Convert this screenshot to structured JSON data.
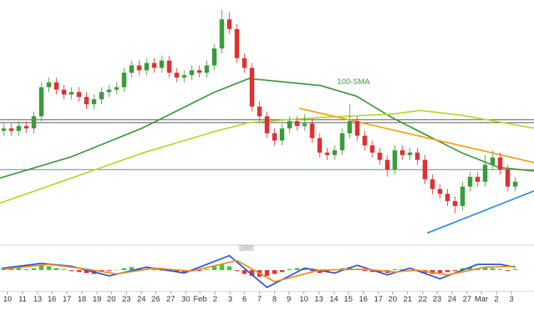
{
  "chart_data": {
    "type": "candlestick",
    "xlim": [
      -0.5,
      70.5
    ],
    "ylim": [
      0,
      100
    ],
    "xticks": [
      {
        "value": 0.5,
        "label": "10"
      },
      {
        "value": 2.5,
        "label": "11"
      },
      {
        "value": 4.5,
        "label": "13"
      },
      {
        "value": 6.4,
        "label": "16"
      },
      {
        "value": 8.4,
        "label": "17"
      },
      {
        "value": 10.4,
        "label": "18"
      },
      {
        "value": 12.4,
        "label": "19"
      },
      {
        "value": 14.3,
        "label": "20"
      },
      {
        "value": 16.3,
        "label": "23"
      },
      {
        "value": 18.3,
        "label": "24"
      },
      {
        "value": 20.2,
        "label": "26"
      },
      {
        "value": 22.2,
        "label": "27"
      },
      {
        "value": 24.2,
        "label": "30"
      },
      {
        "value": 26.1,
        "label": "Feb"
      },
      {
        "value": 28.1,
        "label": "2"
      },
      {
        "value": 30.1,
        "label": "3"
      },
      {
        "value": 32.0,
        "label": "6"
      },
      {
        "value": 34.0,
        "label": "7"
      },
      {
        "value": 36.0,
        "label": "8"
      },
      {
        "value": 37.9,
        "label": "9"
      },
      {
        "value": 39.9,
        "label": "10"
      },
      {
        "value": 41.9,
        "label": "13"
      },
      {
        "value": 43.9,
        "label": "14"
      },
      {
        "value": 45.8,
        "label": "15"
      },
      {
        "value": 47.8,
        "label": "16"
      },
      {
        "value": 49.8,
        "label": "17"
      },
      {
        "value": 51.7,
        "label": "20"
      },
      {
        "value": 53.7,
        "label": "21"
      },
      {
        "value": 55.7,
        "label": "22"
      },
      {
        "value": 57.6,
        "label": "23"
      },
      {
        "value": 59.6,
        "label": "24"
      },
      {
        "value": 61.6,
        "label": "27"
      },
      {
        "value": 63.5,
        "label": "Mar"
      },
      {
        "value": 65.5,
        "label": "2"
      },
      {
        "value": 67.5,
        "label": "3"
      }
    ],
    "up_color": "#3a9b3a",
    "down_color": "#e03030",
    "candles": [
      [
        46,
        49,
        44,
        47
      ],
      [
        47,
        49,
        44,
        46
      ],
      [
        46,
        50,
        44,
        48
      ],
      [
        48,
        50,
        45,
        47
      ],
      [
        47,
        54,
        45,
        52
      ],
      [
        52,
        66,
        50,
        64
      ],
      [
        64,
        68,
        62,
        66
      ],
      [
        66,
        68,
        61,
        63
      ],
      [
        63,
        65,
        59,
        61
      ],
      [
        61,
        64,
        59,
        62
      ],
      [
        62,
        64,
        58,
        60
      ],
      [
        60,
        62,
        55,
        57
      ],
      [
        57,
        61,
        55,
        59
      ],
      [
        59,
        64,
        57,
        62
      ],
      [
        62,
        65,
        60,
        63
      ],
      [
        63,
        66,
        61,
        64
      ],
      [
        64,
        72,
        62,
        70
      ],
      [
        70,
        75,
        68,
        73
      ],
      [
        73,
        75,
        69,
        71
      ],
      [
        71,
        76,
        69,
        74
      ],
      [
        74,
        76,
        70,
        72
      ],
      [
        72,
        77,
        70,
        75
      ],
      [
        75,
        77,
        68,
        70
      ],
      [
        70,
        72,
        66,
        68
      ],
      [
        68,
        71,
        66,
        69
      ],
      [
        69,
        73,
        67,
        71
      ],
      [
        71,
        73,
        68,
        70
      ],
      [
        70,
        75,
        68,
        73
      ],
      [
        73,
        82,
        71,
        80
      ],
      [
        80,
        96,
        78,
        92
      ],
      [
        92,
        95,
        86,
        88
      ],
      [
        88,
        90,
        74,
        76
      ],
      [
        76,
        78,
        70,
        72
      ],
      [
        72,
        74,
        54,
        56
      ],
      [
        56,
        58,
        50,
        52
      ],
      [
        52,
        54,
        43,
        45
      ],
      [
        45,
        47,
        40,
        42
      ],
      [
        42,
        49,
        40,
        47
      ],
      [
        47,
        52,
        45,
        50
      ],
      [
        50,
        52,
        46,
        48
      ],
      [
        48,
        53,
        46,
        49
      ],
      [
        49,
        51,
        41,
        43
      ],
      [
        43,
        45,
        35,
        37
      ],
      [
        37,
        39,
        34,
        36
      ],
      [
        36,
        40,
        34,
        38
      ],
      [
        38,
        47,
        36,
        45
      ],
      [
        45,
        57,
        43,
        50
      ],
      [
        50,
        52,
        42,
        44
      ],
      [
        44,
        46,
        38,
        40
      ],
      [
        40,
        42,
        35,
        37
      ],
      [
        37,
        39,
        32,
        34
      ],
      [
        34,
        36,
        27,
        30
      ],
      [
        30,
        40,
        28,
        38
      ],
      [
        38,
        40,
        34,
        36
      ],
      [
        36,
        39,
        34,
        37
      ],
      [
        37,
        39,
        32,
        34
      ],
      [
        34,
        36,
        24,
        26
      ],
      [
        26,
        28,
        20,
        22
      ],
      [
        22,
        24,
        18,
        20
      ],
      [
        20,
        22,
        15,
        17
      ],
      [
        17,
        19,
        12,
        15
      ],
      [
        15,
        25,
        13,
        23
      ],
      [
        23,
        29,
        21,
        27
      ],
      [
        27,
        29,
        23,
        25
      ],
      [
        25,
        36,
        23,
        32
      ],
      [
        32,
        38,
        30,
        35
      ],
      [
        35,
        37,
        28,
        30
      ],
      [
        30,
        32,
        21,
        23
      ],
      [
        23,
        27,
        21,
        25
      ]
    ],
    "lines": [
      {
        "name": "100-SMA",
        "color": "#3f9a3f",
        "x": [
          -0.5,
          9,
          18.4,
          27.9,
          32.6,
          42.1,
          46.9,
          51.6,
          56.3,
          61,
          65.8,
          70.5
        ],
        "values": [
          26.5,
          35.3,
          47.1,
          61.8,
          67.6,
          64.7,
          60.3,
          51.5,
          44.1,
          36.8,
          30.9,
          29.4
        ]
      },
      {
        "color": "#b0dc30",
        "x": [
          -0.5,
          9,
          18.4,
          27.9,
          32.6,
          42.1,
          51.6,
          55.4,
          61,
          70.5
        ],
        "values": [
          16.2,
          26.5,
          36.8,
          45.6,
          49.4,
          51.5,
          52.9,
          54.4,
          52.4,
          47.1
        ]
      },
      {
        "color": "#f7a21b",
        "x": [
          39.3,
          70.5
        ],
        "values": [
          55.3,
          32.9
        ]
      },
      {
        "color": "#2e8ee0",
        "x": [
          56.3,
          70.5
        ],
        "values": [
          3.8,
          21.2
        ]
      }
    ],
    "hlines": [
      {
        "value": 50.6,
        "color": "#555"
      },
      {
        "value": 49.4,
        "color": "#555"
      },
      {
        "value": 30.0,
        "color": "#7a8aa8"
      }
    ],
    "annotation": {
      "text": "100-SMA",
      "x": 41.5,
      "y": 65.5
    },
    "macd": {
      "ylim": [
        -2,
        2
      ],
      "histogram": [
        0.3,
        0.3,
        0.2,
        0.1,
        0.2,
        0.5,
        0.4,
        0.2,
        0.1,
        -0.1,
        -0.2,
        -0.3,
        -0.4,
        -0.2,
        -0.1,
        0,
        0.2,
        0.3,
        0.2,
        0.1,
        0.1,
        0,
        -0.1,
        -0.2,
        -0.2,
        -0.1,
        -0.1,
        0.1,
        0.4,
        0.6,
        0.4,
        -0.1,
        -0.4,
        -0.6,
        -0.7,
        -0.6,
        -0.4,
        -0.2,
        0.1,
        0.2,
        0.2,
        -0.1,
        -0.3,
        -0.2,
        0,
        0.2,
        0.3,
        0.1,
        -0.1,
        -0.2,
        -0.2,
        -0.3,
        0.1,
        0.1,
        0,
        -0.1,
        -0.3,
        -0.4,
        -0.3,
        -0.2,
        -0.1,
        0.2,
        0.3,
        0.2,
        0.3,
        0.2,
        0.1,
        -0.1,
        0.1
      ],
      "lines": [
        {
          "color": "#2f55d4",
          "x": [
            0,
            5,
            9,
            14,
            19,
            24,
            30,
            35,
            40,
            44,
            47,
            51,
            54,
            58,
            63,
            66,
            68
          ],
          "values": [
            0.2,
            0.7,
            0.4,
            -0.6,
            0.3,
            -0.3,
            1.5,
            -1.8,
            0.2,
            -0.3,
            0.5,
            -0.5,
            0.2,
            -0.9,
            0.6,
            0.6,
            0.3
          ]
        },
        {
          "color": "#f08a24",
          "x": [
            0,
            6,
            11,
            15,
            20,
            25,
            31,
            36,
            42,
            48,
            52,
            55,
            59,
            64,
            68
          ],
          "values": [
            0.1,
            0.6,
            0.1,
            -0.4,
            0.2,
            -0.1,
            1.0,
            -1.2,
            0.0,
            0.1,
            -0.2,
            0,
            -0.5,
            0.3,
            0.4
          ]
        }
      ]
    }
  }
}
